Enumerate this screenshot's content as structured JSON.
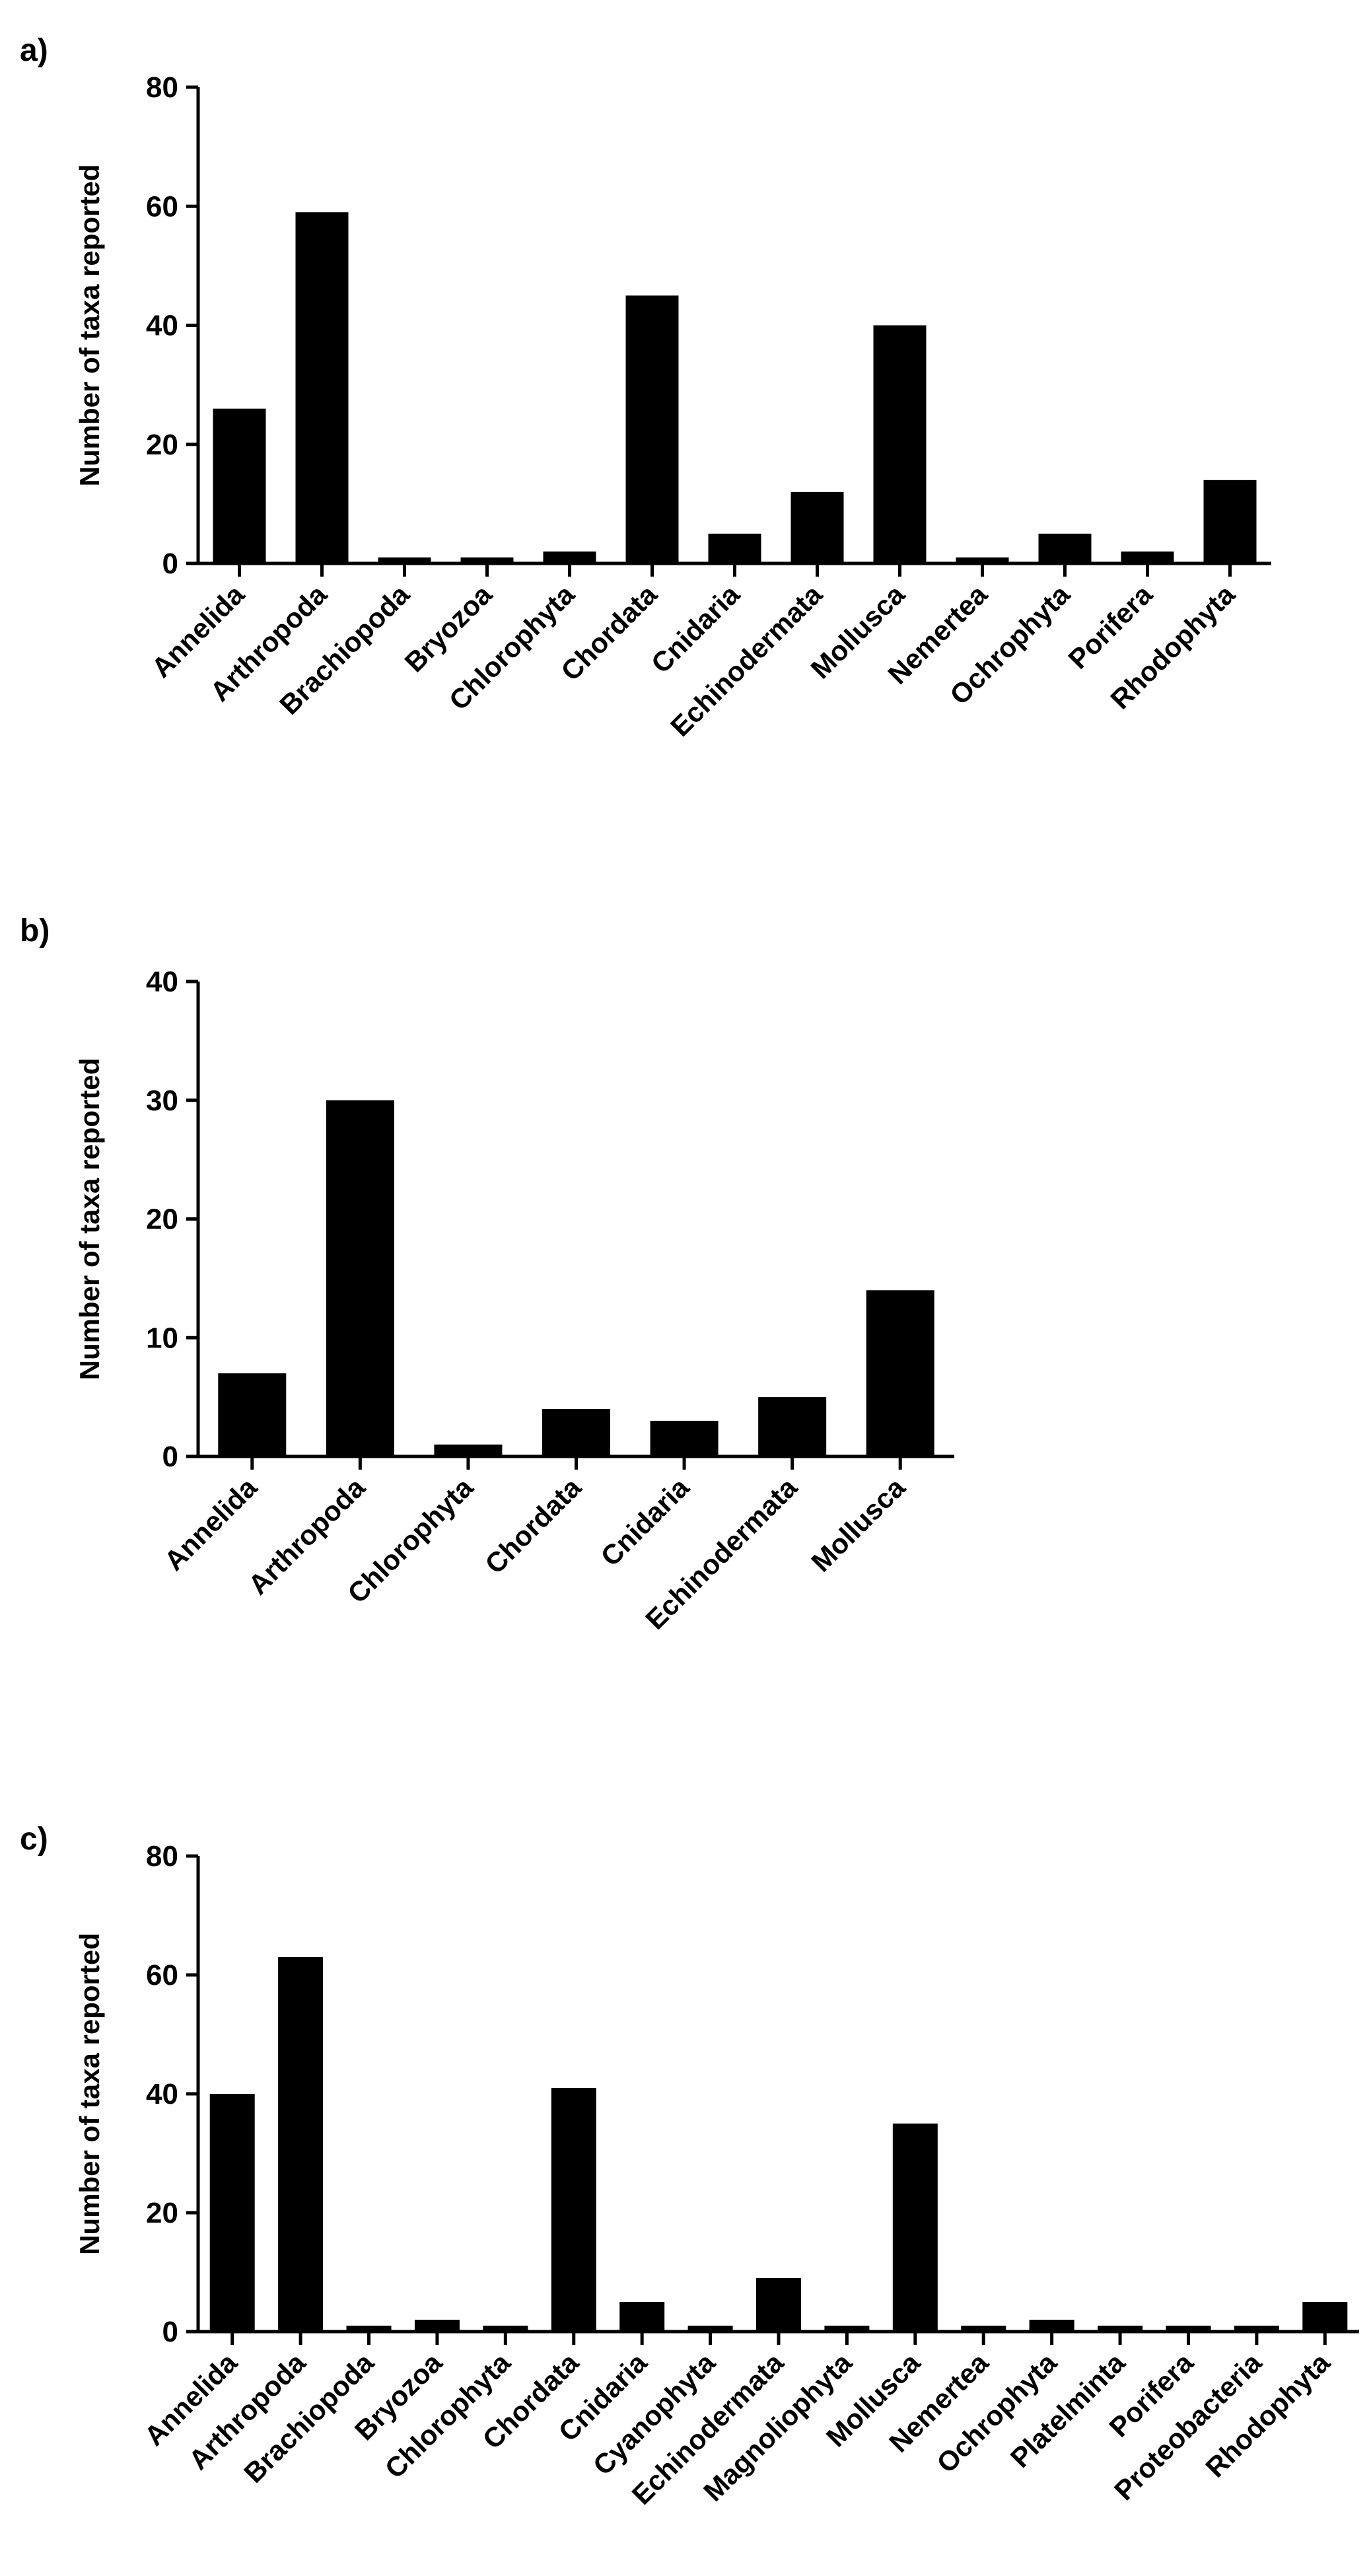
{
  "chart_data": [
    {
      "panel_label": "a)",
      "type": "bar",
      "ylabel": "Number of taxa reported",
      "ylim": [
        0,
        80
      ],
      "yticks": [
        0,
        20,
        40,
        60,
        80
      ],
      "categories": [
        "Annelida",
        "Arthropoda",
        "Brachiopoda",
        "Bryozoa",
        "Chlorophyta",
        "Chordata",
        "Cnidaria",
        "Echinodermata",
        "Mollusca",
        "Nemertea",
        "Ochrophyta",
        "Porifera",
        "Rhodophyta"
      ],
      "values": [
        26,
        59,
        1,
        1,
        2,
        45,
        5,
        12,
        40,
        1,
        5,
        2,
        14
      ],
      "colors": {
        "bar": "#000000"
      }
    },
    {
      "panel_label": "b)",
      "type": "bar",
      "ylabel": "Number of taxa reported",
      "ylim": [
        0,
        40
      ],
      "yticks": [
        0,
        10,
        20,
        30,
        40
      ],
      "categories": [
        "Annelida",
        "Arthropoda",
        "Chlorophyta",
        "Chordata",
        "Cnidaria",
        "Echinodermata",
        "Mollusca"
      ],
      "values": [
        7,
        30,
        1,
        4,
        3,
        5,
        14
      ],
      "colors": {
        "bar": "#000000"
      }
    },
    {
      "panel_label": "c)",
      "type": "bar",
      "ylabel": "Number of taxa reported",
      "ylim": [
        0,
        80
      ],
      "yticks": [
        0,
        20,
        40,
        60,
        80
      ],
      "categories": [
        "Annelida",
        "Arthropoda",
        "Brachiopoda",
        "Bryozoa",
        "Chlorophyta",
        "Chordata",
        "Cnidaria",
        "Cyanophyta",
        "Echinodermata",
        "Magnoliophyta",
        "Mollusca",
        "Nemertea",
        "Ochrophyta",
        "Platelminta",
        "Porifera",
        "Proteobacteria",
        "Rhodophyta"
      ],
      "values": [
        40,
        63,
        1,
        2,
        1,
        41,
        5,
        1,
        9,
        1,
        35,
        1,
        2,
        1,
        1,
        1,
        5
      ],
      "colors": {
        "bar": "#000000"
      }
    }
  ]
}
